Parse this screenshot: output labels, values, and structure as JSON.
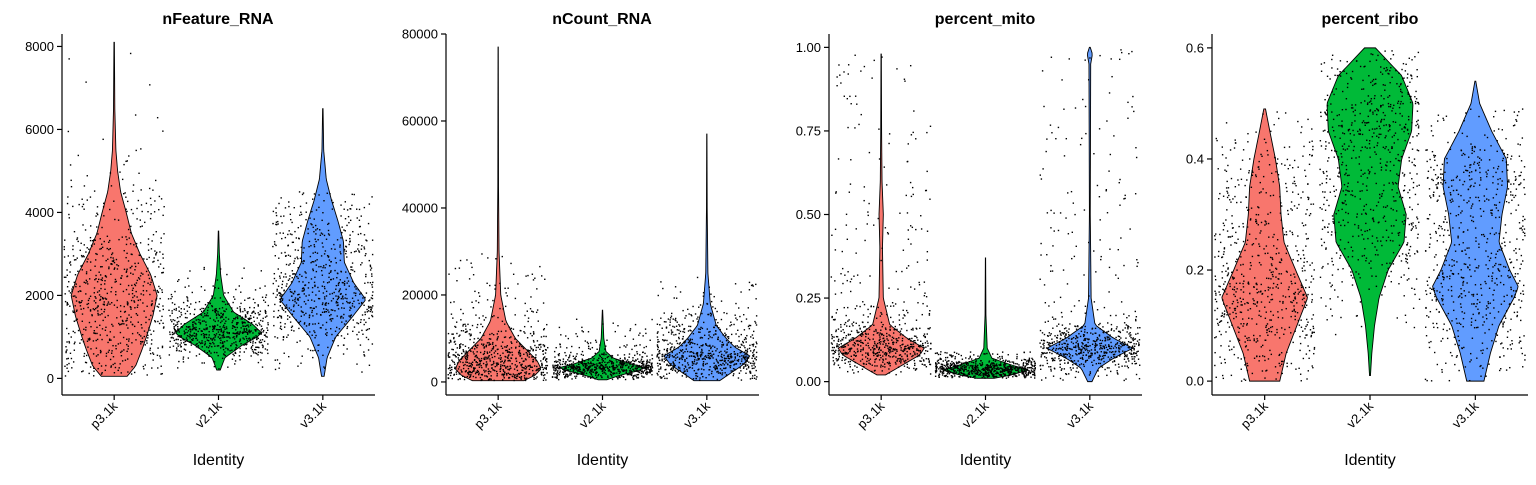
{
  "chart_data": [
    {
      "type": "violin",
      "title": "nFeature_RNA",
      "xlabel": "Identity",
      "ylabel": "",
      "categories": [
        "p3.1k",
        "v2.1k",
        "v3.1k"
      ],
      "colors": [
        "#F8766D",
        "#00BA38",
        "#619CFF"
      ],
      "ylim": [
        -400,
        8300
      ],
      "yticks": [
        0,
        2000,
        4000,
        6000,
        8000
      ],
      "ytick_labels": [
        "0",
        "2000",
        "4000",
        "6000",
        "8000"
      ],
      "series": [
        {
          "category": "p3.1k",
          "min": 50,
          "max": 8100,
          "points_range": [
            50,
            8100
          ],
          "density": [
            [
              50,
              0.3
            ],
            [
              300,
              0.5
            ],
            [
              700,
              0.65
            ],
            [
              1000,
              0.75
            ],
            [
              1500,
              0.9
            ],
            [
              2000,
              1.0
            ],
            [
              2500,
              0.85
            ],
            [
              3000,
              0.6
            ],
            [
              3500,
              0.4
            ],
            [
              4000,
              0.28
            ],
            [
              4500,
              0.15
            ],
            [
              5000,
              0.08
            ],
            [
              5500,
              0.04
            ],
            [
              6500,
              0.015
            ],
            [
              8100,
              0.005
            ]
          ]
        },
        {
          "category": "v2.1k",
          "min": 200,
          "max": 3550,
          "points_range": [
            200,
            2700
          ],
          "density": [
            [
              200,
              0.04
            ],
            [
              500,
              0.15
            ],
            [
              800,
              0.55
            ],
            [
              1000,
              0.9
            ],
            [
              1100,
              1.0
            ],
            [
              1300,
              0.8
            ],
            [
              1600,
              0.35
            ],
            [
              2000,
              0.12
            ],
            [
              2500,
              0.05
            ],
            [
              3000,
              0.02
            ],
            [
              3550,
              0.005
            ]
          ]
        },
        {
          "category": "v3.1k",
          "min": 50,
          "max": 6500,
          "points_range": [
            50,
            4500
          ],
          "density": [
            [
              50,
              0.03
            ],
            [
              500,
              0.1
            ],
            [
              1000,
              0.3
            ],
            [
              1500,
              0.7
            ],
            [
              1900,
              1.0
            ],
            [
              2300,
              0.72
            ],
            [
              2800,
              0.5
            ],
            [
              3300,
              0.48
            ],
            [
              3800,
              0.35
            ],
            [
              4300,
              0.2
            ],
            [
              4800,
              0.08
            ],
            [
              5500,
              0.02
            ],
            [
              6500,
              0.005
            ]
          ]
        }
      ]
    },
    {
      "type": "violin",
      "title": "nCount_RNA",
      "xlabel": "Identity",
      "ylabel": "",
      "categories": [
        "p3.1k",
        "v2.1k",
        "v3.1k"
      ],
      "colors": [
        "#F8766D",
        "#00BA38",
        "#619CFF"
      ],
      "ylim": [
        -3000,
        80000
      ],
      "yticks": [
        0,
        20000,
        40000,
        60000,
        80000
      ],
      "ytick_labels": [
        "0",
        "20000",
        "40000",
        "60000",
        "80000"
      ],
      "series": [
        {
          "category": "p3.1k",
          "min": 300,
          "max": 77000,
          "points_range": [
            300,
            30000
          ],
          "density": [
            [
              300,
              0.6
            ],
            [
              1500,
              0.85
            ],
            [
              3000,
              1.0
            ],
            [
              5000,
              0.9
            ],
            [
              7000,
              0.7
            ],
            [
              10000,
              0.4
            ],
            [
              14000,
              0.18
            ],
            [
              20000,
              0.06
            ],
            [
              30000,
              0.02
            ],
            [
              45000,
              0.008
            ],
            [
              77000,
              0.003
            ]
          ]
        },
        {
          "category": "v2.1k",
          "min": 500,
          "max": 16500,
          "points_range": [
            500,
            15000
          ],
          "density": [
            [
              500,
              0.1
            ],
            [
              1500,
              0.4
            ],
            [
              2500,
              0.8
            ],
            [
              3300,
              1.0
            ],
            [
              4200,
              0.65
            ],
            [
              5500,
              0.25
            ],
            [
              7000,
              0.08
            ],
            [
              10000,
              0.03
            ],
            [
              16500,
              0.004
            ]
          ]
        },
        {
          "category": "v3.1k",
          "min": 300,
          "max": 57000,
          "points_range": [
            300,
            25000
          ],
          "density": [
            [
              300,
              0.3
            ],
            [
              2000,
              0.55
            ],
            [
              4000,
              0.85
            ],
            [
              6000,
              1.0
            ],
            [
              8000,
              0.65
            ],
            [
              10000,
              0.45
            ],
            [
              13000,
              0.22
            ],
            [
              18000,
              0.08
            ],
            [
              25000,
              0.025
            ],
            [
              40000,
              0.008
            ],
            [
              57000,
              0.003
            ]
          ]
        }
      ]
    },
    {
      "type": "violin",
      "title": "percent_mito",
      "xlabel": "Identity",
      "ylabel": "",
      "categories": [
        "p3.1k",
        "v2.1k",
        "v3.1k"
      ],
      "colors": [
        "#F8766D",
        "#00BA38",
        "#619CFF"
      ],
      "ylim": [
        -0.04,
        1.04
      ],
      "yticks": [
        0.0,
        0.25,
        0.5,
        0.75,
        1.0
      ],
      "ytick_labels": [
        "0.00",
        "0.25",
        "0.50",
        "0.75",
        "1.00"
      ],
      "series": [
        {
          "category": "p3.1k",
          "min": 0.02,
          "max": 0.98,
          "points_range": [
            0.02,
            0.98
          ],
          "density": [
            [
              0.02,
              0.1
            ],
            [
              0.05,
              0.5
            ],
            [
              0.08,
              0.9
            ],
            [
              0.1,
              1.0
            ],
            [
              0.13,
              0.6
            ],
            [
              0.17,
              0.2
            ],
            [
              0.25,
              0.05
            ],
            [
              0.4,
              0.03
            ],
            [
              0.5,
              0.05
            ],
            [
              0.6,
              0.02
            ],
            [
              0.75,
              0.01
            ],
            [
              0.98,
              0.004
            ]
          ]
        },
        {
          "category": "v2.1k",
          "min": 0.01,
          "max": 0.37,
          "points_range": [
            0.01,
            0.09
          ],
          "density": [
            [
              0.01,
              0.2
            ],
            [
              0.02,
              0.6
            ],
            [
              0.035,
              1.0
            ],
            [
              0.05,
              0.6
            ],
            [
              0.07,
              0.15
            ],
            [
              0.1,
              0.04
            ],
            [
              0.2,
              0.01
            ],
            [
              0.37,
              0.003
            ]
          ]
        },
        {
          "category": "v3.1k",
          "min": 0.0,
          "max": 1.0,
          "points_range": [
            0.0,
            1.0
          ],
          "density": [
            [
              0.0,
              0.05
            ],
            [
              0.04,
              0.2
            ],
            [
              0.07,
              0.55
            ],
            [
              0.1,
              1.0
            ],
            [
              0.13,
              0.55
            ],
            [
              0.17,
              0.12
            ],
            [
              0.25,
              0.03
            ],
            [
              0.5,
              0.01
            ],
            [
              0.95,
              0.02
            ],
            [
              0.98,
              0.06
            ],
            [
              1.0,
              0.01
            ]
          ]
        }
      ]
    },
    {
      "type": "violin",
      "title": "percent_ribo",
      "xlabel": "Identity",
      "ylabel": "",
      "categories": [
        "p3.1k",
        "v2.1k",
        "v3.1k"
      ],
      "colors": [
        "#F8766D",
        "#00BA38",
        "#619CFF"
      ],
      "ylim": [
        -0.025,
        0.625
      ],
      "yticks": [
        0.0,
        0.2,
        0.4,
        0.6
      ],
      "ytick_labels": [
        "0.0",
        "0.2",
        "0.4",
        "0.6"
      ],
      "series": [
        {
          "category": "p3.1k",
          "min": 0.0,
          "max": 0.49,
          "points_range": [
            0.0,
            0.49
          ],
          "density": [
            [
              0.0,
              0.35
            ],
            [
              0.05,
              0.5
            ],
            [
              0.1,
              0.75
            ],
            [
              0.15,
              1.0
            ],
            [
              0.2,
              0.72
            ],
            [
              0.25,
              0.45
            ],
            [
              0.3,
              0.38
            ],
            [
              0.35,
              0.35
            ],
            [
              0.4,
              0.25
            ],
            [
              0.45,
              0.12
            ],
            [
              0.49,
              0.02
            ]
          ]
        },
        {
          "category": "v2.1k",
          "min": 0.01,
          "max": 0.6,
          "points_range": [
            0.08,
            0.6
          ],
          "density": [
            [
              0.01,
              0.01
            ],
            [
              0.05,
              0.04
            ],
            [
              0.1,
              0.1
            ],
            [
              0.15,
              0.2
            ],
            [
              0.2,
              0.4
            ],
            [
              0.25,
              0.75
            ],
            [
              0.3,
              0.8
            ],
            [
              0.35,
              0.62
            ],
            [
              0.4,
              0.7
            ],
            [
              0.45,
              0.92
            ],
            [
              0.5,
              0.95
            ],
            [
              0.55,
              0.7
            ],
            [
              0.6,
              0.12
            ]
          ]
        },
        {
          "category": "v3.1k",
          "min": 0.0,
          "max": 0.54,
          "points_range": [
            0.0,
            0.49
          ],
          "density": [
            [
              0.0,
              0.2
            ],
            [
              0.05,
              0.35
            ],
            [
              0.1,
              0.55
            ],
            [
              0.15,
              0.9
            ],
            [
              0.17,
              1.0
            ],
            [
              0.2,
              0.8
            ],
            [
              0.25,
              0.55
            ],
            [
              0.3,
              0.62
            ],
            [
              0.35,
              0.75
            ],
            [
              0.4,
              0.72
            ],
            [
              0.45,
              0.38
            ],
            [
              0.5,
              0.1
            ],
            [
              0.54,
              0.01
            ]
          ]
        }
      ]
    }
  ]
}
